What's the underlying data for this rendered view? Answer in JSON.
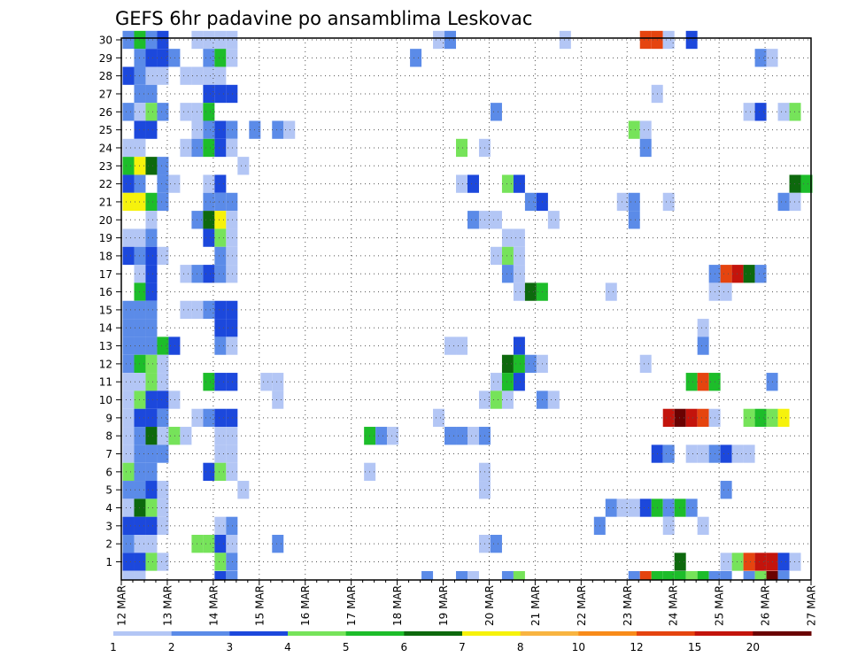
{
  "chart_data": {
    "type": "heatmap",
    "title": "GEFS 6hr padavine po ansamblima Leskovac",
    "xlabel": "",
    "ylabel": "",
    "x_ticks": [
      "12 MAR",
      "13 MAR",
      "14 MAR",
      "15 MAR",
      "16 MAR",
      "17 MAR",
      "18 MAR",
      "19 MAR",
      "20 MAR",
      "21 MAR",
      "22 MAR",
      "23 MAR",
      "24 MAR",
      "25 MAR",
      "26 MAR",
      "27 MAR"
    ],
    "y_ticks": [
      1,
      2,
      3,
      4,
      5,
      6,
      7,
      8,
      9,
      10,
      11,
      12,
      13,
      14,
      15,
      16,
      17,
      18,
      19,
      20,
      21,
      22,
      23,
      24,
      25,
      26,
      27,
      28,
      29,
      30
    ],
    "colorbar": {
      "levels": [
        1,
        2,
        3,
        4,
        5,
        6,
        7,
        8,
        10,
        12,
        15,
        20
      ],
      "colors": [
        "#b3c6f5",
        "#5b8be8",
        "#1c48dc",
        "#76e35a",
        "#1dbd2a",
        "#0d690d",
        "#f6f20c",
        "#f8b441",
        "#f88b1a",
        "#e5440f",
        "#c3140c",
        "#6a0202"
      ]
    },
    "grid": true,
    "cells": [
      [
        0,
        30,
        2
      ],
      [
        1,
        30,
        5
      ],
      [
        2,
        30,
        2
      ],
      [
        3,
        30,
        3
      ],
      [
        6,
        30,
        1
      ],
      [
        7,
        30,
        1
      ],
      [
        8,
        30,
        1
      ],
      [
        9,
        30,
        1
      ],
      [
        27,
        30,
        1
      ],
      [
        28,
        30,
        2
      ],
      [
        38,
        30,
        1
      ],
      [
        45,
        30,
        10
      ],
      [
        46,
        30,
        10
      ],
      [
        47,
        30,
        1
      ],
      [
        49,
        30,
        3
      ],
      [
        1,
        29,
        2
      ],
      [
        2,
        29,
        3
      ],
      [
        3,
        29,
        3
      ],
      [
        4,
        29,
        2
      ],
      [
        7,
        29,
        2
      ],
      [
        8,
        29,
        5
      ],
      [
        9,
        29,
        1
      ],
      [
        25,
        29,
        2
      ],
      [
        55,
        29,
        2
      ],
      [
        56,
        29,
        1
      ],
      [
        0,
        28,
        3
      ],
      [
        1,
        28,
        2
      ],
      [
        2,
        28,
        1
      ],
      [
        3,
        28,
        1
      ],
      [
        5,
        28,
        1
      ],
      [
        6,
        28,
        1
      ],
      [
        7,
        28,
        1
      ],
      [
        8,
        28,
        1
      ],
      [
        1,
        27,
        2
      ],
      [
        2,
        27,
        2
      ],
      [
        7,
        27,
        3
      ],
      [
        8,
        27,
        3
      ],
      [
        9,
        27,
        3
      ],
      [
        46,
        27,
        1
      ],
      [
        0,
        26,
        2
      ],
      [
        1,
        26,
        1
      ],
      [
        2,
        26,
        4
      ],
      [
        3,
        26,
        2
      ],
      [
        5,
        26,
        1
      ],
      [
        6,
        26,
        1
      ],
      [
        7,
        26,
        5
      ],
      [
        32,
        26,
        2
      ],
      [
        54,
        26,
        1
      ],
      [
        55,
        26,
        3
      ],
      [
        57,
        26,
        1
      ],
      [
        58,
        26,
        4
      ],
      [
        1,
        25,
        3
      ],
      [
        2,
        25,
        3
      ],
      [
        6,
        25,
        1
      ],
      [
        7,
        25,
        2
      ],
      [
        8,
        25,
        3
      ],
      [
        9,
        25,
        2
      ],
      [
        11,
        25,
        2
      ],
      [
        13,
        25,
        2
      ],
      [
        14,
        25,
        1
      ],
      [
        44,
        25,
        4
      ],
      [
        45,
        25,
        1
      ],
      [
        0,
        24,
        1
      ],
      [
        1,
        24,
        1
      ],
      [
        5,
        24,
        1
      ],
      [
        6,
        24,
        2
      ],
      [
        7,
        24,
        5
      ],
      [
        8,
        24,
        3
      ],
      [
        9,
        24,
        1
      ],
      [
        29,
        24,
        4
      ],
      [
        31,
        24,
        1
      ],
      [
        45,
        24,
        2
      ],
      [
        0,
        23,
        5
      ],
      [
        1,
        23,
        7
      ],
      [
        2,
        23,
        6
      ],
      [
        3,
        23,
        2
      ],
      [
        10,
        23,
        1
      ],
      [
        0,
        22,
        3
      ],
      [
        1,
        22,
        2
      ],
      [
        3,
        22,
        2
      ],
      [
        4,
        22,
        1
      ],
      [
        7,
        22,
        1
      ],
      [
        8,
        22,
        3
      ],
      [
        29,
        22,
        1
      ],
      [
        30,
        22,
        3
      ],
      [
        33,
        22,
        4
      ],
      [
        34,
        22,
        3
      ],
      [
        58,
        22,
        6
      ],
      [
        59,
        22,
        5
      ],
      [
        0,
        21,
        7
      ],
      [
        1,
        21,
        7
      ],
      [
        2,
        21,
        5
      ],
      [
        3,
        21,
        2
      ],
      [
        7,
        21,
        2
      ],
      [
        8,
        21,
        2
      ],
      [
        9,
        21,
        2
      ],
      [
        35,
        21,
        2
      ],
      [
        36,
        21,
        3
      ],
      [
        43,
        21,
        1
      ],
      [
        44,
        21,
        2
      ],
      [
        47,
        21,
        1
      ],
      [
        57,
        21,
        2
      ],
      [
        58,
        21,
        1
      ],
      [
        2,
        20,
        1
      ],
      [
        6,
        20,
        2
      ],
      [
        7,
        20,
        6
      ],
      [
        8,
        20,
        7
      ],
      [
        9,
        20,
        1
      ],
      [
        30,
        20,
        2
      ],
      [
        31,
        20,
        1
      ],
      [
        32,
        20,
        1
      ],
      [
        37,
        20,
        1
      ],
      [
        44,
        20,
        2
      ],
      [
        0,
        19,
        1
      ],
      [
        1,
        19,
        1
      ],
      [
        2,
        19,
        2
      ],
      [
        7,
        19,
        3
      ],
      [
        8,
        19,
        4
      ],
      [
        9,
        19,
        1
      ],
      [
        33,
        19,
        1
      ],
      [
        34,
        19,
        1
      ],
      [
        0,
        18,
        3
      ],
      [
        1,
        18,
        2
      ],
      [
        2,
        18,
        3
      ],
      [
        3,
        18,
        1
      ],
      [
        8,
        18,
        2
      ],
      [
        9,
        18,
        1
      ],
      [
        32,
        18,
        1
      ],
      [
        33,
        18,
        4
      ],
      [
        34,
        18,
        1
      ],
      [
        1,
        17,
        1
      ],
      [
        2,
        17,
        3
      ],
      [
        5,
        17,
        1
      ],
      [
        6,
        17,
        2
      ],
      [
        7,
        17,
        3
      ],
      [
        8,
        17,
        2
      ],
      [
        9,
        17,
        1
      ],
      [
        33,
        17,
        2
      ],
      [
        34,
        17,
        1
      ],
      [
        51,
        17,
        2
      ],
      [
        52,
        17,
        10
      ],
      [
        53,
        17,
        11
      ],
      [
        54,
        17,
        6
      ],
      [
        55,
        17,
        2
      ],
      [
        1,
        16,
        5
      ],
      [
        2,
        16,
        3
      ],
      [
        34,
        16,
        1
      ],
      [
        35,
        16,
        6
      ],
      [
        36,
        16,
        5
      ],
      [
        42,
        16,
        1
      ],
      [
        51,
        16,
        1
      ],
      [
        52,
        16,
        1
      ],
      [
        0,
        15,
        2
      ],
      [
        1,
        15,
        2
      ],
      [
        2,
        15,
        2
      ],
      [
        5,
        15,
        1
      ],
      [
        6,
        15,
        1
      ],
      [
        7,
        15,
        2
      ],
      [
        8,
        15,
        3
      ],
      [
        9,
        15,
        3
      ],
      [
        0,
        14,
        2
      ],
      [
        1,
        14,
        2
      ],
      [
        2,
        14,
        2
      ],
      [
        8,
        14,
        3
      ],
      [
        9,
        14,
        3
      ],
      [
        50,
        14,
        1
      ],
      [
        0,
        13,
        2
      ],
      [
        1,
        13,
        2
      ],
      [
        2,
        13,
        2
      ],
      [
        3,
        13,
        5
      ],
      [
        4,
        13,
        3
      ],
      [
        8,
        13,
        2
      ],
      [
        9,
        13,
        1
      ],
      [
        28,
        13,
        1
      ],
      [
        29,
        13,
        1
      ],
      [
        34,
        13,
        3
      ],
      [
        50,
        13,
        2
      ],
      [
        0,
        12,
        2
      ],
      [
        1,
        12,
        5
      ],
      [
        2,
        12,
        4
      ],
      [
        3,
        12,
        1
      ],
      [
        33,
        12,
        6
      ],
      [
        34,
        12,
        5
      ],
      [
        35,
        12,
        2
      ],
      [
        36,
        12,
        1
      ],
      [
        45,
        12,
        1
      ],
      [
        0,
        11,
        1
      ],
      [
        1,
        11,
        1
      ],
      [
        2,
        11,
        4
      ],
      [
        3,
        11,
        1
      ],
      [
        7,
        11,
        5
      ],
      [
        8,
        11,
        3
      ],
      [
        9,
        11,
        3
      ],
      [
        12,
        11,
        1
      ],
      [
        13,
        11,
        1
      ],
      [
        32,
        11,
        1
      ],
      [
        33,
        11,
        5
      ],
      [
        34,
        11,
        3
      ],
      [
        49,
        11,
        5
      ],
      [
        50,
        11,
        10
      ],
      [
        51,
        11,
        5
      ],
      [
        56,
        11,
        2
      ],
      [
        0,
        10,
        1
      ],
      [
        1,
        10,
        4
      ],
      [
        2,
        10,
        3
      ],
      [
        3,
        10,
        3
      ],
      [
        4,
        10,
        1
      ],
      [
        13,
        10,
        1
      ],
      [
        31,
        10,
        1
      ],
      [
        32,
        10,
        4
      ],
      [
        33,
        10,
        1
      ],
      [
        36,
        10,
        2
      ],
      [
        37,
        10,
        1
      ],
      [
        0,
        9,
        1
      ],
      [
        1,
        9,
        3
      ],
      [
        2,
        9,
        3
      ],
      [
        3,
        9,
        2
      ],
      [
        6,
        9,
        1
      ],
      [
        7,
        9,
        2
      ],
      [
        8,
        9,
        3
      ],
      [
        9,
        9,
        3
      ],
      [
        27,
        9,
        1
      ],
      [
        47,
        9,
        11
      ],
      [
        48,
        9,
        12
      ],
      [
        49,
        9,
        11
      ],
      [
        50,
        9,
        10
      ],
      [
        51,
        9,
        1
      ],
      [
        54,
        9,
        4
      ],
      [
        55,
        9,
        5
      ],
      [
        56,
        9,
        4
      ],
      [
        57,
        9,
        7
      ],
      [
        0,
        8,
        1
      ],
      [
        1,
        8,
        2
      ],
      [
        2,
        8,
        6
      ],
      [
        3,
        8,
        1
      ],
      [
        4,
        8,
        4
      ],
      [
        5,
        8,
        1
      ],
      [
        8,
        8,
        1
      ],
      [
        9,
        8,
        1
      ],
      [
        21,
        8,
        5
      ],
      [
        22,
        8,
        2
      ],
      [
        23,
        8,
        1
      ],
      [
        28,
        8,
        2
      ],
      [
        29,
        8,
        2
      ],
      [
        30,
        8,
        1
      ],
      [
        31,
        8,
        2
      ],
      [
        0,
        7,
        1
      ],
      [
        1,
        7,
        2
      ],
      [
        2,
        7,
        2
      ],
      [
        3,
        7,
        2
      ],
      [
        8,
        7,
        1
      ],
      [
        9,
        7,
        1
      ],
      [
        46,
        7,
        3
      ],
      [
        47,
        7,
        2
      ],
      [
        49,
        7,
        1
      ],
      [
        50,
        7,
        1
      ],
      [
        51,
        7,
        2
      ],
      [
        52,
        7,
        3
      ],
      [
        53,
        7,
        1
      ],
      [
        54,
        7,
        1
      ],
      [
        0,
        6,
        4
      ],
      [
        1,
        6,
        2
      ],
      [
        2,
        6,
        2
      ],
      [
        7,
        6,
        3
      ],
      [
        8,
        6,
        4
      ],
      [
        9,
        6,
        1
      ],
      [
        21,
        6,
        1
      ],
      [
        31,
        6,
        1
      ],
      [
        0,
        5,
        2
      ],
      [
        1,
        5,
        2
      ],
      [
        2,
        5,
        3
      ],
      [
        3,
        5,
        1
      ],
      [
        10,
        5,
        1
      ],
      [
        31,
        5,
        1
      ],
      [
        52,
        5,
        2
      ],
      [
        0,
        4,
        1
      ],
      [
        1,
        4,
        6
      ],
      [
        2,
        4,
        4
      ],
      [
        3,
        4,
        1
      ],
      [
        42,
        4,
        2
      ],
      [
        43,
        4,
        1
      ],
      [
        44,
        4,
        1
      ],
      [
        45,
        4,
        3
      ],
      [
        46,
        4,
        5
      ],
      [
        47,
        4,
        2
      ],
      [
        48,
        4,
        5
      ],
      [
        49,
        4,
        2
      ],
      [
        0,
        3,
        3
      ],
      [
        1,
        3,
        3
      ],
      [
        2,
        3,
        3
      ],
      [
        3,
        3,
        1
      ],
      [
        8,
        3,
        1
      ],
      [
        9,
        3,
        2
      ],
      [
        41,
        3,
        2
      ],
      [
        47,
        3,
        1
      ],
      [
        50,
        3,
        1
      ],
      [
        0,
        2,
        2
      ],
      [
        1,
        2,
        1
      ],
      [
        2,
        2,
        1
      ],
      [
        6,
        2,
        4
      ],
      [
        7,
        2,
        4
      ],
      [
        8,
        2,
        3
      ],
      [
        9,
        2,
        1
      ],
      [
        13,
        2,
        2
      ],
      [
        31,
        2,
        1
      ],
      [
        32,
        2,
        2
      ],
      [
        0,
        1,
        3
      ],
      [
        1,
        1,
        3
      ],
      [
        2,
        1,
        4
      ],
      [
        3,
        1,
        1
      ],
      [
        8,
        1,
        4
      ],
      [
        9,
        1,
        2
      ],
      [
        48,
        1,
        6
      ],
      [
        52,
        1,
        1
      ],
      [
        53,
        1,
        4
      ],
      [
        54,
        1,
        10
      ],
      [
        55,
        1,
        11
      ],
      [
        56,
        1,
        11
      ],
      [
        57,
        1,
        3
      ],
      [
        58,
        1,
        1
      ],
      [
        0,
        0,
        1
      ],
      [
        1,
        0,
        1
      ],
      [
        8,
        0,
        3
      ],
      [
        9,
        0,
        2
      ],
      [
        26,
        0,
        2
      ],
      [
        29,
        0,
        2
      ],
      [
        30,
        0,
        1
      ],
      [
        33,
        0,
        2
      ],
      [
        34,
        0,
        4
      ],
      [
        44,
        0,
        2
      ],
      [
        45,
        0,
        10
      ],
      [
        46,
        0,
        5
      ],
      [
        47,
        0,
        5
      ],
      [
        48,
        0,
        5
      ],
      [
        49,
        0,
        4
      ],
      [
        50,
        0,
        5
      ],
      [
        51,
        0,
        2
      ],
      [
        52,
        0,
        2
      ],
      [
        54,
        0,
        2
      ],
      [
        55,
        0,
        4
      ],
      [
        56,
        0,
        12
      ],
      [
        57,
        0,
        2
      ]
    ]
  }
}
